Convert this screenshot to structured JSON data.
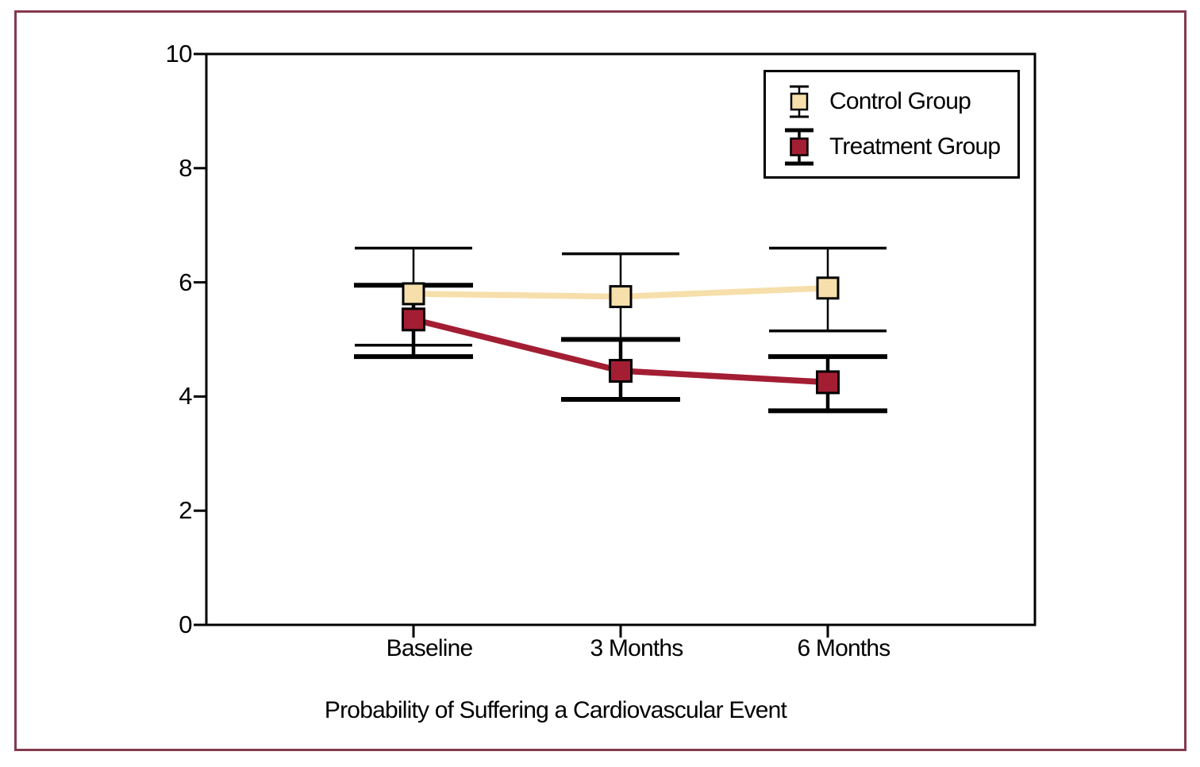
{
  "figure": {
    "background_color": "#ffffff",
    "frame_color": "#84394e",
    "axis_color": "#000000"
  },
  "chart_data": {
    "type": "line",
    "title": "",
    "xlabel": "Probability of Suffering a Cardiovascular Event",
    "ylabel": "",
    "categories": [
      "Baseline",
      "3 Months",
      "6 Months"
    ],
    "ylim": [
      0,
      10
    ],
    "yticks": [
      0,
      2,
      4,
      6,
      8,
      10
    ],
    "grid": false,
    "legend_position": "top-right",
    "error_bars": true,
    "series": [
      {
        "name": "Control Group",
        "color": "#f6dfab",
        "values": [
          5.8,
          5.75,
          5.9
        ],
        "error_low": [
          4.9,
          5.0,
          5.15
        ],
        "error_high": [
          6.6,
          6.5,
          6.6
        ]
      },
      {
        "name": "Treatment Group",
        "color": "#a31e33",
        "values": [
          5.35,
          4.45,
          4.25
        ],
        "error_low": [
          4.7,
          3.95,
          3.75
        ],
        "error_high": [
          5.95,
          5.0,
          4.7
        ]
      }
    ]
  }
}
